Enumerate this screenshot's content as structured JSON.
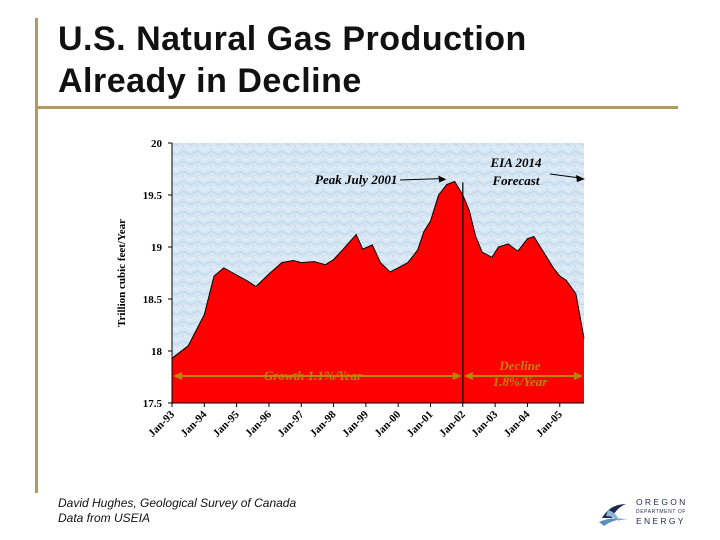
{
  "title": {
    "line1": "U.S. Natural Gas Production",
    "line2": "Already in Decline"
  },
  "source": {
    "line1": "David Hughes, Geological Survey of Canada",
    "line2": "Data from USEIA"
  },
  "logo": {
    "line1": "OREGON",
    "line2": "DEPARTMENT OF",
    "line3": "ENERGY",
    "icon": "oregon-energy-logo-icon"
  },
  "chart_data": {
    "type": "area",
    "ylabel": "Trillion cubic feet/Year",
    "ylim": [
      17.5,
      20
    ],
    "yticks": [
      17.5,
      18,
      18.5,
      19,
      19.5,
      20
    ],
    "xlim": [
      1993.0,
      2005.75
    ],
    "xticks": [
      {
        "label": "Jan-93",
        "x": 1993
      },
      {
        "label": "Jan-94",
        "x": 1994
      },
      {
        "label": "Jan-95",
        "x": 1995
      },
      {
        "label": "Jan-96",
        "x": 1996
      },
      {
        "label": "Jan-97",
        "x": 1997
      },
      {
        "label": "Jan-98",
        "x": 1998
      },
      {
        "label": "Jan-99",
        "x": 1999
      },
      {
        "label": "Jan-00",
        "x": 2000
      },
      {
        "label": "Jan-01",
        "x": 2001
      },
      {
        "label": "Jan-02",
        "x": 2002
      },
      {
        "label": "Jan-03",
        "x": 2003
      },
      {
        "label": "Jan-04",
        "x": 2004
      },
      {
        "label": "Jan-05",
        "x": 2005
      }
    ],
    "grid": false,
    "fill_color": "#ff0000",
    "line_color": "#000000",
    "background_pattern": "light-blue-texture",
    "x": [
      1993.0,
      1993.5,
      1994.0,
      1994.3,
      1994.6,
      1995.0,
      1995.3,
      1995.6,
      1996.0,
      1996.4,
      1996.75,
      1997.0,
      1997.4,
      1997.75,
      1998.0,
      1998.3,
      1998.7,
      1998.9,
      1999.2,
      1999.45,
      1999.75,
      2000.0,
      2000.3,
      2000.6,
      2000.8,
      2001.0,
      2001.25,
      2001.5,
      2001.75,
      2002.0,
      2002.2,
      2002.4,
      2002.6,
      2002.9,
      2003.1,
      2003.4,
      2003.7,
      2004.0,
      2004.2,
      2004.5,
      2004.8,
      2005.0,
      2005.2,
      2005.5,
      2005.75
    ],
    "values": [
      17.93,
      18.05,
      18.35,
      18.72,
      18.8,
      18.73,
      18.68,
      18.62,
      18.74,
      18.85,
      18.87,
      18.85,
      18.86,
      18.83,
      18.88,
      18.98,
      19.12,
      18.98,
      19.02,
      18.85,
      18.76,
      18.8,
      18.85,
      18.97,
      19.15,
      19.25,
      19.5,
      19.6,
      19.63,
      19.5,
      19.35,
      19.1,
      18.95,
      18.9,
      19.0,
      19.03,
      18.96,
      19.08,
      19.1,
      18.95,
      18.8,
      18.72,
      18.68,
      18.55,
      18.12
    ],
    "markers": [
      {
        "label": "Peak July 2001",
        "x": 2001.55,
        "y": 19.62
      },
      {
        "label": "Jan-02 divider",
        "x": 2002.0
      }
    ],
    "annotations": [
      {
        "text": "Peak July 2001",
        "role": "peak-label"
      },
      {
        "text": "EIA 2014",
        "role": "forecast-label-1"
      },
      {
        "text": "Forecast",
        "role": "forecast-label-2"
      },
      {
        "text": "Growth 1.1%/Year",
        "role": "growth-label"
      },
      {
        "text": "Decline",
        "role": "decline-label-1"
      },
      {
        "text": "1.8%/Year",
        "role": "decline-label-2"
      }
    ]
  }
}
